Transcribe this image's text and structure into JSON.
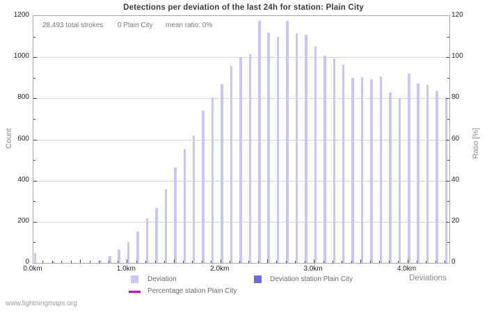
{
  "title": "Detections per deviation of the last 24h for station: Plain City",
  "annotations": {
    "total_strokes": "28,493 total strokes",
    "station_strokes": "0 Plain City",
    "mean_ratio": "mean ratio: 0%"
  },
  "footer": "www.lightningmaps.org",
  "axes": {
    "left_label": "Count",
    "right_label": "Ratio [%]",
    "x_label": "Deviations"
  },
  "legend": {
    "items": [
      {
        "label": "Deviation",
        "swatch": "square",
        "color": "#c6c8f3"
      },
      {
        "label": "Deviation station Plain City",
        "swatch": "square",
        "color": "#6b6ae0"
      },
      {
        "label": "Percentage station Plain City",
        "swatch": "line",
        "color": "#cc00cc"
      }
    ]
  },
  "colors": {
    "deviation_bar": "#c6c8f3",
    "station_bar": "#6b6ae0",
    "percentage_line": "#cc00cc",
    "grid": "#d4d4d4",
    "frame": "#a8a8a8"
  },
  "chart_data": {
    "type": "bar",
    "title": "Detections per deviation of the last 24h for station: Plain City",
    "xlabel": "Deviations",
    "ylabel_left": "Count",
    "ylabel_right": "Ratio [%]",
    "ylim_left": [
      0,
      1200
    ],
    "ylim_right": [
      0,
      120
    ],
    "xlim_km": [
      0,
      4.45
    ],
    "grid": "horizontal",
    "legend_position": "bottom",
    "y_left_ticks": [
      0,
      200,
      400,
      600,
      800,
      1000,
      1200
    ],
    "y_right_ticks": [
      0,
      20,
      40,
      60,
      80,
      100,
      120
    ],
    "x_tick_labels": [
      "0.0km",
      "1.0km",
      "2.0km",
      "3.0km",
      "4.0km"
    ],
    "x_tick_km": [
      0,
      1,
      2,
      3,
      4
    ],
    "x_km": [
      0.0,
      0.1,
      0.2,
      0.3,
      0.4,
      0.5,
      0.6,
      0.7,
      0.8,
      0.9,
      1.0,
      1.1,
      1.2,
      1.3,
      1.4,
      1.5,
      1.6,
      1.7,
      1.8,
      1.9,
      2.0,
      2.1,
      2.2,
      2.3,
      2.4,
      2.5,
      2.6,
      2.7,
      2.8,
      2.9,
      3.0,
      3.1,
      3.2,
      3.3,
      3.4,
      3.5,
      3.6,
      3.7,
      3.8,
      3.9,
      4.0,
      4.1,
      4.2,
      4.3,
      4.4
    ],
    "series": [
      {
        "name": "Deviation",
        "values": [
          46,
          0,
          8,
          0,
          0,
          0,
          0,
          15,
          34,
          63,
          100,
          153,
          216,
          267,
          357,
          464,
          555,
          617,
          742,
          803,
          868,
          956,
          1000,
          1015,
          1176,
          1120,
          1098,
          1178,
          1116,
          1110,
          1052,
          1008,
          995,
          962,
          898,
          903,
          894,
          906,
          829,
          797,
          919,
          873,
          865,
          834,
          806
        ]
      },
      {
        "name": "Deviation station Plain City",
        "values": [
          0,
          0,
          0,
          0,
          0,
          0,
          0,
          0,
          0,
          0,
          0,
          0,
          0,
          0,
          0,
          0,
          0,
          0,
          0,
          0,
          0,
          0,
          0,
          0,
          0,
          0,
          0,
          0,
          0,
          0,
          0,
          0,
          0,
          0,
          0,
          0,
          0,
          0,
          0,
          0,
          0,
          0,
          0,
          0,
          0
        ]
      },
      {
        "name": "Percentage station Plain City",
        "type": "line",
        "values": [
          0,
          0,
          0,
          0,
          0,
          0,
          0,
          0,
          0,
          0,
          0,
          0,
          0,
          0,
          0,
          0,
          0,
          0,
          0,
          0,
          0,
          0,
          0,
          0,
          0,
          0,
          0,
          0,
          0,
          0,
          0,
          0,
          0,
          0,
          0,
          0,
          0,
          0,
          0,
          0,
          0,
          0,
          0,
          0,
          0
        ]
      }
    ]
  }
}
